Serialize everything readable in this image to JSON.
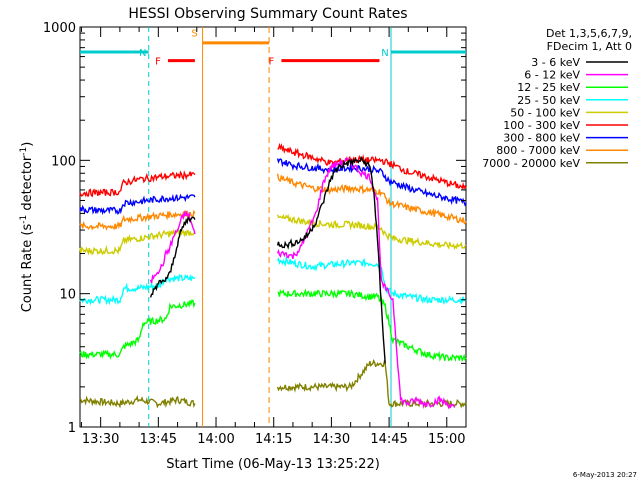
{
  "chart_data": {
    "type": "line",
    "title": "HESSI Observing Summary Count Rates",
    "xlabel": "Start Time (06-May-13 13:25:22)",
    "ylabel_main": "Count Rate (s",
    "ylabel_sup1": "-1",
    "ylabel_mid": " detector",
    "ylabel_sup2": "-1",
    "ylabel_end": ")",
    "yscale": "log",
    "ylim": [
      1,
      1000
    ],
    "xlim_minutes": [
      -5.37,
      95.0
    ],
    "x_ticks": [
      {
        "label": "13:30",
        "m": 0
      },
      {
        "label": "13:45",
        "m": 15
      },
      {
        "label": "14:00",
        "m": 30
      },
      {
        "label": "14:15",
        "m": 45
      },
      {
        "label": "14:30",
        "m": 60
      },
      {
        "label": "14:45",
        "m": 75
      },
      {
        "label": "15:00",
        "m": 90
      }
    ],
    "y_ticks": [
      {
        "label": "1",
        "v": 1
      },
      {
        "label": "10",
        "v": 10
      },
      {
        "label": "100",
        "v": 100
      },
      {
        "label": "1000",
        "v": 1000
      }
    ],
    "legend_header": [
      "Det 1,3,5,6,7,9,",
      "FDecim 1, Att 0"
    ],
    "legend_position": "right",
    "series": [
      {
        "name": "3 - 6 keV",
        "color": "#000000",
        "x": [
          -5.4,
          12,
          13,
          14,
          15,
          16,
          17,
          18,
          19,
          20,
          21,
          22,
          23,
          24.5,
          "gap",
          46,
          48,
          50,
          52,
          54,
          56,
          58,
          60,
          62,
          64,
          66,
          68,
          70,
          71,
          72,
          73,
          74
        ],
        "y": [
          null,
          null,
          9,
          11,
          12,
          12,
          13,
          14,
          18,
          24,
          30,
          34,
          37,
          36,
          null,
          24,
          23,
          24,
          25,
          28,
          35,
          50,
          75,
          90,
          95,
          98,
          100,
          90,
          60,
          25,
          8,
          3
        ]
      },
      {
        "name": "6 - 12 keV",
        "color": "#ff00ff",
        "x": [
          13,
          14,
          15,
          16,
          17,
          18,
          19,
          20,
          21,
          22,
          23,
          24.5,
          "gap",
          46,
          48,
          50,
          52,
          54,
          56,
          58,
          60,
          62,
          64,
          66,
          68,
          70,
          72,
          73,
          74,
          76,
          78,
          80,
          82,
          84,
          86,
          88,
          90,
          92
        ],
        "y": [
          12,
          14,
          15,
          16,
          20,
          22,
          27,
          30,
          36,
          40,
          38,
          28,
          null,
          20,
          20,
          19,
          22,
          30,
          40,
          70,
          90,
          95,
          100,
          90,
          80,
          75,
          50,
          12,
          11,
          9,
          1.6,
          1.5,
          1.6,
          1.5,
          1.5,
          1.6,
          1.5,
          1.4
        ]
      },
      {
        "name": "12 - 25 keV",
        "color": "#00ff00",
        "x": [
          -5.4,
          5,
          6,
          10,
          11,
          17,
          18,
          24.5,
          "gap",
          46,
          50,
          55,
          60,
          65,
          70,
          72,
          74,
          76,
          80,
          85,
          90,
          95
        ],
        "y": [
          3.5,
          3.5,
          4,
          4.5,
          6,
          6.5,
          8,
          8.5,
          null,
          10,
          10,
          10,
          10,
          10,
          9.5,
          9.5,
          8,
          4.5,
          4,
          3.5,
          3.3,
          3.3
        ]
      },
      {
        "name": "25 - 50 keV",
        "color": "#00ffff",
        "x": [
          -5.4,
          0,
          5,
          6,
          10,
          15,
          17,
          24.5,
          "gap",
          46,
          50,
          55,
          60,
          65,
          70,
          73,
          74,
          76,
          80,
          85,
          90,
          95
        ],
        "y": [
          9,
          9,
          9,
          11,
          11,
          11.5,
          13,
          13,
          null,
          18,
          17,
          16,
          16.5,
          17,
          17,
          16.5,
          11,
          10,
          9.5,
          9,
          9,
          9
        ]
      },
      {
        "name": "50 - 100 keV",
        "color": "#cccc00",
        "x": [
          -5.4,
          0,
          5,
          6,
          10,
          17,
          24.5,
          "gap",
          46,
          50,
          55,
          60,
          65,
          70,
          73,
          74,
          76,
          80,
          85,
          90,
          95
        ],
        "y": [
          21,
          21,
          21,
          25,
          26,
          28,
          29,
          null,
          37,
          36,
          34,
          33,
          33,
          32,
          31,
          28,
          26,
          25,
          24,
          23,
          23
        ]
      },
      {
        "name": "100 - 300 keV",
        "color": "#ff0000",
        "x": [
          -5.4,
          0,
          5,
          6,
          10,
          17,
          24.5,
          "gap",
          46,
          50,
          55,
          60,
          65,
          70,
          73,
          75,
          80,
          85,
          90,
          95
        ],
        "y": [
          57,
          57,
          58,
          68,
          72,
          76,
          78,
          null,
          125,
          115,
          105,
          95,
          102,
          100,
          100,
          95,
          82,
          75,
          68,
          62
        ]
      },
      {
        "name": "300 - 800 keV",
        "color": "#0000ff",
        "x": [
          -5.4,
          0,
          5,
          6,
          10,
          17,
          24.5,
          "gap",
          46,
          50,
          55,
          60,
          65,
          70,
          73,
          75,
          80,
          85,
          90,
          95
        ],
        "y": [
          43,
          42,
          42,
          48,
          49,
          52,
          53,
          null,
          100,
          92,
          88,
          85,
          88,
          86,
          82,
          70,
          62,
          56,
          52,
          48
        ]
      },
      {
        "name": "800 - 7000 keV",
        "color": "#ff8800",
        "x": [
          -5.4,
          0,
          5,
          6,
          10,
          17,
          24.5,
          "gap",
          46,
          50,
          55,
          60,
          65,
          70,
          73,
          75,
          80,
          85,
          90,
          95
        ],
        "y": [
          32,
          32,
          32,
          36,
          37,
          39,
          40,
          null,
          75,
          68,
          62,
          60,
          62,
          60,
          58,
          48,
          44,
          41,
          38,
          35
        ]
      },
      {
        "name": "7000 - 20000 keV",
        "color": "#808000",
        "x": [
          -5.4,
          5,
          10,
          15,
          20,
          24.5,
          "gap",
          46,
          50,
          55,
          60,
          65,
          70,
          74,
          75,
          80,
          85,
          90,
          95
        ],
        "y": [
          1.6,
          1.5,
          1.6,
          1.5,
          1.6,
          1.5,
          null,
          2,
          2,
          2,
          2,
          2,
          3,
          3,
          1.5,
          1.5,
          1.5,
          1.5,
          1.5
        ]
      }
    ],
    "annotations": [
      {
        "label": "N",
        "color": "#00cccc",
        "x": [
          -5.37,
          12.5
        ]
      },
      {
        "label": "N",
        "color": "#00cccc",
        "x": [
          75.5,
          95.0
        ]
      },
      {
        "label": "F",
        "color": "#ff0000",
        "x": [
          17.5,
          24.5
        ]
      },
      {
        "label": "F",
        "color": "#ff0000",
        "x": [
          47.0,
          72.5
        ]
      },
      {
        "label": "S",
        "color": "#ff8800",
        "x": [
          26.5,
          43.8
        ]
      }
    ],
    "footer_stamp": "6-May-2013 20:27"
  }
}
